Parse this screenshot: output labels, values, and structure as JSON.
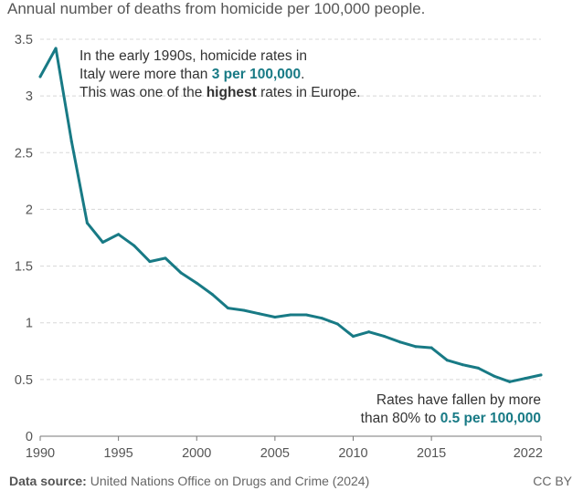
{
  "subtitle": "Annual number of deaths from homicide per 100,000 people.",
  "annotation_top": {
    "line1": "In the early 1990s, homicide rates in",
    "line2_pre": "Italy were more than ",
    "line2_hl": "3 per 100,000",
    "line2_post": ".",
    "line3_pre": "This was one of the ",
    "line3_bold": "highest",
    "line3_post": " rates in Europe."
  },
  "annotation_bottom": {
    "line1": "Rates have fallen by more",
    "line2_pre": "than 80% to ",
    "line2_hl": "0.5 per 100,000"
  },
  "footer": {
    "source_label": "Data source:",
    "source_text": " United Nations Office on Drugs and Crime (2024)",
    "license": "CC BY"
  },
  "colors": {
    "line": "#187a85",
    "grid": "#d8d8d8",
    "axis": "#777777"
  },
  "chart_data": {
    "type": "line",
    "title": "Annual number of deaths from homicide per 100,000 people.",
    "xlabel": "",
    "ylabel": "",
    "xlim": [
      1990,
      2022
    ],
    "ylim": [
      0,
      3.5
    ],
    "grid": true,
    "x_ticks": [
      1990,
      1995,
      2000,
      2005,
      2010,
      2015,
      2022
    ],
    "y_ticks": [
      0,
      0.5,
      1,
      1.5,
      2,
      2.5,
      3,
      3.5
    ],
    "series": [
      {
        "name": "Italy",
        "x": [
          1990,
          1991,
          1992,
          1993,
          1994,
          1995,
          1996,
          1997,
          1998,
          1999,
          2000,
          2001,
          2002,
          2003,
          2004,
          2005,
          2006,
          2007,
          2008,
          2009,
          2010,
          2011,
          2012,
          2013,
          2014,
          2015,
          2016,
          2017,
          2018,
          2019,
          2020,
          2021,
          2022
        ],
        "values": [
          3.17,
          3.42,
          2.6,
          1.88,
          1.71,
          1.78,
          1.68,
          1.54,
          1.57,
          1.44,
          1.35,
          1.25,
          1.13,
          1.11,
          1.08,
          1.05,
          1.07,
          1.07,
          1.04,
          0.99,
          0.88,
          0.92,
          0.88,
          0.83,
          0.79,
          0.78,
          0.67,
          0.63,
          0.6,
          0.53,
          0.48,
          0.51,
          0.54
        ]
      }
    ]
  }
}
